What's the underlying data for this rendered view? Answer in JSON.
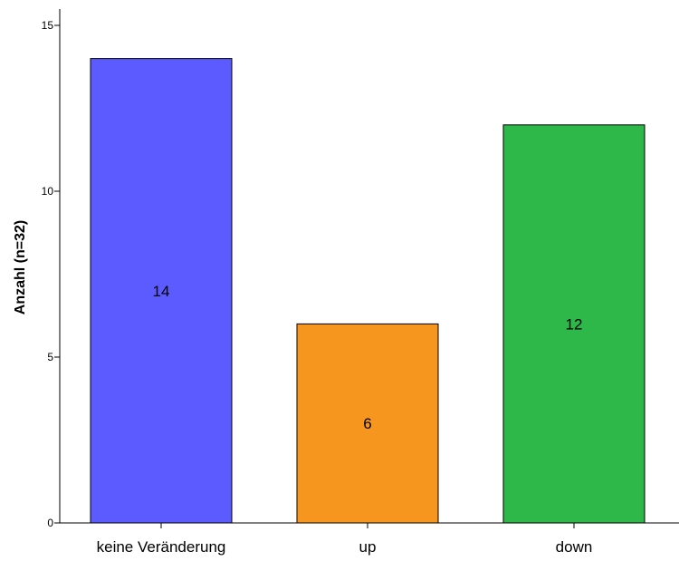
{
  "chart_data": {
    "type": "bar",
    "title": "",
    "xlabel": "",
    "ylabel": "Anzahl (n=32)",
    "ylim": [
      0,
      15
    ],
    "yticks": [
      0,
      5,
      10,
      15
    ],
    "ytick_labels": [
      "0",
      "5",
      "10",
      "15"
    ],
    "grid": false,
    "legend": "none",
    "categories": [
      "keine Veränderung",
      "up",
      "down"
    ],
    "values": [
      14,
      6,
      12
    ],
    "value_labels": [
      "14",
      "6",
      "12"
    ],
    "colors": [
      "#5b5bff",
      "#f7961e",
      "#2fb84a"
    ]
  }
}
